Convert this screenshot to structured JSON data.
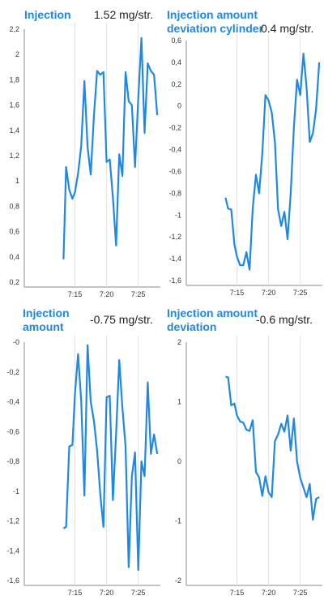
{
  "panels": [
    {
      "title_lines": [
        "Injection"
      ],
      "value": "1.52  mg/str.",
      "chart_data": {
        "type": "line",
        "title": "Injection",
        "y_ticks": [
          "2,2",
          "2",
          "1,8",
          "1,6",
          "1,4",
          "1,2",
          "1",
          "0,8",
          "0,6",
          "0,4",
          "0,2"
        ],
        "x_ticks": [
          "7:15",
          "7:20",
          "7:25"
        ],
        "ylim": [
          0.2,
          2.2
        ],
        "xlim": [
          7.0,
          28.5
        ],
        "grid": true,
        "color": "#1e88e5",
        "x": [
          13.2,
          13.6,
          14.1,
          14.6,
          15.0,
          15.5,
          16.0,
          16.5,
          17.0,
          17.5,
          18.0,
          18.5,
          19.0,
          19.5,
          20.0,
          20.5,
          21.0,
          21.5,
          22.0,
          22.5,
          23.0,
          23.5,
          24.0,
          24.5,
          25.0,
          25.5,
          26.0,
          26.5,
          27.0,
          27.5,
          28.0
        ],
        "y": [
          0.38,
          1.11,
          0.93,
          0.86,
          0.91,
          1.06,
          1.28,
          1.79,
          1.27,
          1.05,
          1.52,
          1.87,
          1.84,
          1.86,
          1.15,
          1.17,
          0.87,
          0.49,
          1.21,
          1.04,
          1.86,
          1.63,
          1.6,
          1.11,
          1.65,
          2.13,
          1.38,
          1.93,
          1.87,
          1.84,
          1.52
        ]
      }
    },
    {
      "title_lines": [
        "Injection amount",
        "deviation cylinder"
      ],
      "value": "0.4  mg/str.",
      "chart_data": {
        "type": "line",
        "title": "Injection amount deviation cylinder",
        "y_ticks": [
          "0,6",
          "0,4",
          "0,2",
          "0",
          "-0,2",
          "-0,4",
          "-0,6",
          "-0,8",
          "-1",
          "-1,2",
          "-1,4",
          "-1,6"
        ],
        "x_ticks": [
          "7:15",
          "7:20",
          "7:25"
        ],
        "ylim": [
          -1.6,
          0.6
        ],
        "xlim": [
          7.0,
          28.5
        ],
        "grid": true,
        "color": "#1e88e5",
        "x": [
          13.2,
          13.6,
          14.1,
          14.6,
          15.0,
          15.5,
          16.0,
          16.5,
          17.0,
          17.5,
          18.0,
          18.5,
          19.0,
          19.5,
          20.0,
          20.5,
          21.0,
          21.5,
          22.0,
          22.5,
          23.0,
          23.5,
          24.0,
          24.5,
          25.0,
          25.5,
          26.0,
          26.5,
          27.0,
          27.5,
          28.0
        ],
        "y": [
          -0.84,
          -0.94,
          -0.95,
          -1.27,
          -1.38,
          -1.46,
          -1.46,
          -1.34,
          -1.5,
          -0.94,
          -0.63,
          -0.8,
          -0.44,
          0.1,
          0.05,
          -0.06,
          -0.33,
          -0.95,
          -1.1,
          -0.97,
          -1.22,
          -0.8,
          -0.2,
          0.24,
          0.1,
          0.48,
          0.17,
          -0.33,
          -0.25,
          -0.03,
          0.4
        ]
      }
    },
    {
      "title_lines": [
        "Injection",
        "amount"
      ],
      "value": "-0.75  mg/str.",
      "chart_data": {
        "type": "line",
        "title": "Injection amount",
        "y_ticks": [
          "-0",
          "-0,2",
          "-0,4",
          "-0,6",
          "-0,8",
          "-1",
          "-1,2",
          "-1,4",
          "-1,6"
        ],
        "x_ticks": [
          "7:15",
          "7:20",
          "7:25"
        ],
        "ylim": [
          -1.6,
          0.0
        ],
        "xlim": [
          7.0,
          28.5
        ],
        "grid": true,
        "color": "#1e88e5",
        "x": [
          13.2,
          13.6,
          14.1,
          14.6,
          15.0,
          15.5,
          16.0,
          16.5,
          17.0,
          17.5,
          18.0,
          18.5,
          19.0,
          19.5,
          20.0,
          20.5,
          21.0,
          21.5,
          22.0,
          22.5,
          23.0,
          23.5,
          24.0,
          24.5,
          25.0,
          25.5,
          26.0,
          26.5,
          27.0,
          27.5,
          28.0
        ],
        "y": [
          -1.25,
          -1.24,
          -0.7,
          -0.69,
          -0.35,
          -0.08,
          -0.4,
          -1.03,
          -0.02,
          -0.4,
          -0.53,
          -0.73,
          -1.02,
          -1.24,
          -0.37,
          -0.36,
          -1.06,
          -0.62,
          -0.12,
          -0.44,
          -0.7,
          -1.51,
          -0.9,
          -0.74,
          -1.53,
          -0.8,
          -0.9,
          -0.27,
          -0.75,
          -0.62,
          -0.75
        ]
      }
    },
    {
      "title_lines": [
        "Injection amount",
        "deviation"
      ],
      "value": "-0.6  mg/str.",
      "chart_data": {
        "type": "line",
        "title": "Injection amount deviation",
        "y_ticks": [
          "2",
          "1",
          "0",
          "-1",
          "-2"
        ],
        "x_ticks": [
          "7:15",
          "7:20",
          "7:25"
        ],
        "ylim": [
          -2,
          2
        ],
        "xlim": [
          7.0,
          28.5
        ],
        "grid": true,
        "color": "#1e88e5",
        "x": [
          13.2,
          13.6,
          14.1,
          14.6,
          15.0,
          15.5,
          16.0,
          16.5,
          17.0,
          17.5,
          18.0,
          18.5,
          19.0,
          19.5,
          20.0,
          20.5,
          21.0,
          21.5,
          22.0,
          22.5,
          23.0,
          23.5,
          24.0,
          24.5,
          25.0,
          25.5,
          26.0,
          26.5,
          27.0,
          27.5,
          28.0
        ],
        "y": [
          1.42,
          1.41,
          0.94,
          0.97,
          0.77,
          0.67,
          0.65,
          0.53,
          0.51,
          0.69,
          -0.18,
          -0.27,
          -0.58,
          -0.25,
          -0.52,
          -0.6,
          0.34,
          0.45,
          0.63,
          0.5,
          0.77,
          0.18,
          0.72,
          0.0,
          -0.28,
          -0.44,
          -0.6,
          -0.38,
          -0.98,
          -0.63,
          -0.6
        ]
      }
    }
  ]
}
